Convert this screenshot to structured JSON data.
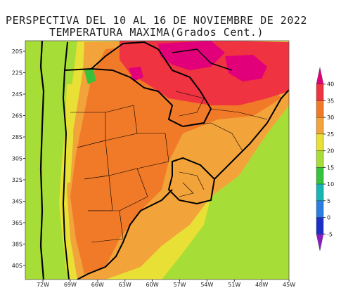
{
  "title_line1": "PERSPECTIVA DEL 10 AL 16 DE NOVIEMBRE DE 2022",
  "title_line2": "TEMPERATURA MAXIMA(Grados Cent.)",
  "lat_labels": [
    "20S",
    "22S",
    "24S",
    "26S",
    "28S",
    "30S",
    "32S",
    "34S",
    "36S",
    "38S",
    "40S"
  ],
  "lon_labels": [
    "72W",
    "69W",
    "66W",
    "63W",
    "60W",
    "57W",
    "54W",
    "51W",
    "48W",
    "45W"
  ],
  "colorbar": {
    "levels": [
      "40",
      "35",
      "30",
      "25",
      "20",
      "15",
      "10",
      "5",
      "0",
      "-5"
    ],
    "colors": [
      "#e2007a",
      "#ef3340",
      "#f07a28",
      "#f2a33a",
      "#e9e035",
      "#a7dd37",
      "#36c23a",
      "#18b5b5",
      "#2a7de1",
      "#1b2fc8",
      "#8a1cc8"
    ]
  }
}
